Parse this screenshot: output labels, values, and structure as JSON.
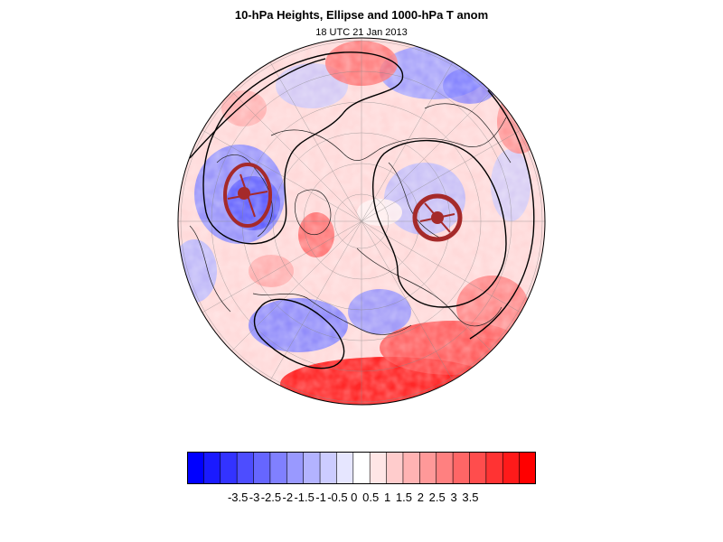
{
  "title": "10-hPa Heights, Ellipse and 1000-hPa T anom",
  "subtitle": "18 UTC 21 Jan 2013",
  "colors": {
    "ellipse": "#a52a2a",
    "contour": "#000000",
    "grid": "#888888",
    "coast": "#222222"
  },
  "colorbar": {
    "colors": [
      "#0000ff",
      "#1a1aff",
      "#3333ff",
      "#4d4dff",
      "#6666ff",
      "#8080ff",
      "#9999ff",
      "#b3b3ff",
      "#ccccff",
      "#e6e6ff",
      "#ffffff",
      "#ffe6e6",
      "#ffcccc",
      "#ffb3b3",
      "#ff9999",
      "#ff8080",
      "#ff6666",
      "#ff4d4d",
      "#ff3333",
      "#ff1a1a",
      "#ff0000"
    ],
    "labels": [
      "-3.5",
      "-3",
      "-2.5",
      "-2",
      "-1.5",
      "-1",
      "-0.5",
      "0",
      "0.5",
      "1",
      "1.5",
      "2",
      "2.5",
      "3",
      "3.5"
    ]
  }
}
